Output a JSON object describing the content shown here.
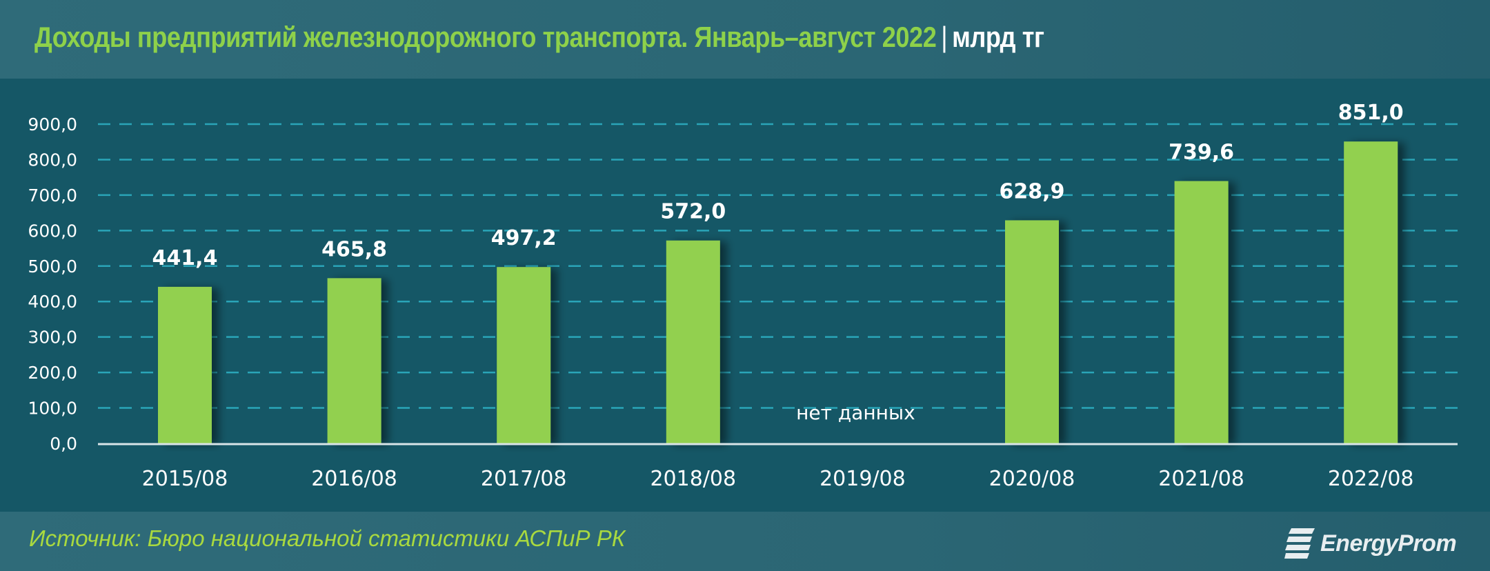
{
  "header": {
    "title": "Доходы предприятий железнодорожного транспорта. Январь–август 2022",
    "separator": "|",
    "unit": "млрд тг"
  },
  "footer": {
    "source": "Источник: Бюро национальной статистики АСПиР РК",
    "logo_text": "EnergyProm",
    "logo_icon": "energyprom-e-logo-icon"
  },
  "colors": {
    "header_bg": "#2b6674",
    "chart_bg": "#155766",
    "bar": "#92d050",
    "title_green": "#8ed14a",
    "source_green": "#a9d93f",
    "gridline": "#2aa5b8",
    "axis": "#d9e4e8"
  },
  "chart_data": {
    "type": "bar",
    "title": "Доходы предприятий железнодорожного транспорта. Январь–август 2022 | млрд тг",
    "xlabel": "",
    "ylabel": "млрд тг",
    "ylim": [
      0,
      900
    ],
    "yticks": [
      "0,0",
      "100,0",
      "200,0",
      "300,0",
      "400,0",
      "500,0",
      "600,0",
      "700,0",
      "800,0",
      "900,0"
    ],
    "grid": true,
    "grid_style": "dashed",
    "legend": null,
    "categories": [
      "2015/08",
      "2016/08",
      "2017/08",
      "2018/08",
      "2019/08",
      "2020/08",
      "2021/08",
      "2022/08"
    ],
    "values": [
      441.4,
      465.8,
      497.2,
      572.0,
      null,
      628.9,
      739.6,
      851.0
    ],
    "value_labels": [
      "441,4",
      "465,8",
      "497,2",
      "572,0",
      "",
      "628,9",
      "739,6",
      "851,0"
    ],
    "annotations": [
      {
        "category": "2019/08",
        "text": "нет данных"
      }
    ]
  }
}
